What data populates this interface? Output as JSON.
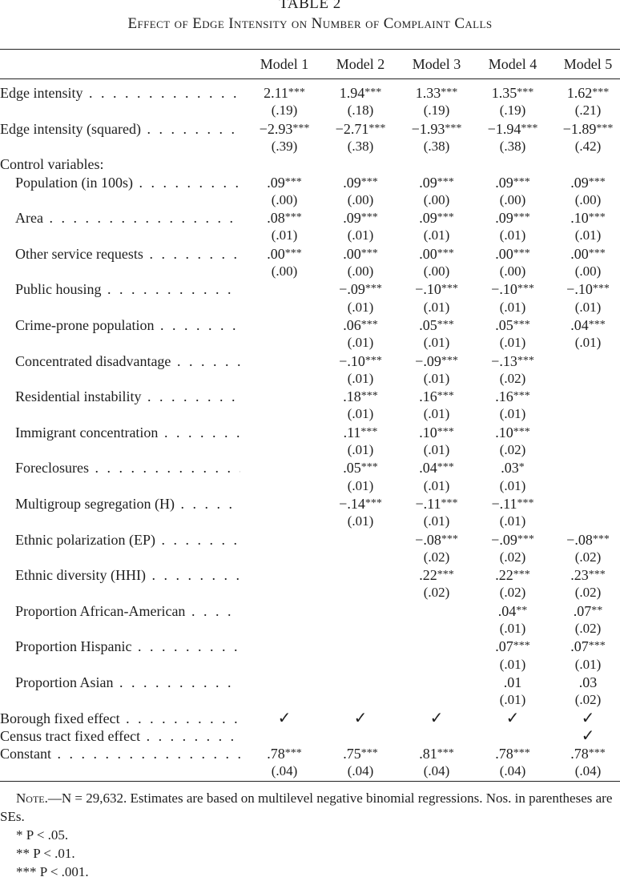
{
  "title": {
    "number": "TABLE 2",
    "caption": "Effect of Edge Intensity on Number of Complaint Calls"
  },
  "columns": [
    "Model 1",
    "Model 2",
    "Model 3",
    "Model 4",
    "Model 5"
  ],
  "rows": [
    {
      "label": "Edge intensity",
      "indent": false,
      "coef": [
        [
          "2.11",
          "***"
        ],
        [
          "1.94",
          "***"
        ],
        [
          "1.33",
          "***"
        ],
        [
          "1.35",
          "***"
        ],
        [
          "1.62",
          "***"
        ]
      ],
      "se": [
        "(.19)",
        "(.18)",
        "(.19)",
        "(.19)",
        "(.21)"
      ]
    },
    {
      "label": "Edge intensity (squared)",
      "indent": false,
      "coef": [
        [
          "−2.93",
          "***"
        ],
        [
          "−2.71",
          "***"
        ],
        [
          "−1.93",
          "***"
        ],
        [
          "−1.94",
          "***"
        ],
        [
          "−1.89",
          "***"
        ]
      ],
      "se": [
        "(.39)",
        "(.38)",
        "(.38)",
        "(.38)",
        "(.42)"
      ]
    },
    {
      "label": "Control variables:",
      "indent": false,
      "header": true
    },
    {
      "label": "Population (in 100s)",
      "indent": true,
      "coef": [
        [
          ".09",
          "***"
        ],
        [
          ".09",
          "***"
        ],
        [
          ".09",
          "***"
        ],
        [
          ".09",
          "***"
        ],
        [
          ".09",
          "***"
        ]
      ],
      "se": [
        "(.00)",
        "(.00)",
        "(.00)",
        "(.00)",
        "(.00)"
      ]
    },
    {
      "label": "Area",
      "indent": true,
      "coef": [
        [
          ".08",
          "***"
        ],
        [
          ".09",
          "***"
        ],
        [
          ".09",
          "***"
        ],
        [
          ".09",
          "***"
        ],
        [
          ".10",
          "***"
        ]
      ],
      "se": [
        "(.01)",
        "(.01)",
        "(.01)",
        "(.01)",
        "(.01)"
      ]
    },
    {
      "label": "Other service requests",
      "indent": true,
      "coef": [
        [
          ".00",
          "***"
        ],
        [
          ".00",
          "***"
        ],
        [
          ".00",
          "***"
        ],
        [
          ".00",
          "***"
        ],
        [
          ".00",
          "***"
        ]
      ],
      "se": [
        "(.00)",
        "(.00)",
        "(.00)",
        "(.00)",
        "(.00)"
      ]
    },
    {
      "label": "Public housing",
      "indent": true,
      "coef": [
        null,
        [
          "−.09",
          "***"
        ],
        [
          "−.10",
          "***"
        ],
        [
          "−.10",
          "***"
        ],
        [
          "−.10",
          "***"
        ]
      ],
      "se": [
        "",
        "(.01)",
        "(.01)",
        "(.01)",
        "(.01)"
      ]
    },
    {
      "label": "Crime-prone population",
      "indent": true,
      "coef": [
        null,
        [
          ".06",
          "***"
        ],
        [
          ".05",
          "***"
        ],
        [
          ".05",
          "***"
        ],
        [
          ".04",
          "***"
        ]
      ],
      "se": [
        "",
        "(.01)",
        "(.01)",
        "(.01)",
        "(.01)"
      ]
    },
    {
      "label": "Concentrated disadvantage",
      "indent": true,
      "coef": [
        null,
        [
          "−.10",
          "***"
        ],
        [
          "−.09",
          "***"
        ],
        [
          "−.13",
          "***"
        ],
        null
      ],
      "se": [
        "",
        "(.01)",
        "(.01)",
        "(.02)",
        ""
      ]
    },
    {
      "label": "Residential instability",
      "indent": true,
      "coef": [
        null,
        [
          ".18",
          "***"
        ],
        [
          ".16",
          "***"
        ],
        [
          ".16",
          "***"
        ],
        null
      ],
      "se": [
        "",
        "(.01)",
        "(.01)",
        "(.01)",
        ""
      ]
    },
    {
      "label": "Immigrant concentration",
      "indent": true,
      "coef": [
        null,
        [
          ".11",
          "***"
        ],
        [
          ".10",
          "***"
        ],
        [
          ".10",
          "***"
        ],
        null
      ],
      "se": [
        "",
        "(.01)",
        "(.01)",
        "(.02)",
        ""
      ]
    },
    {
      "label": "Foreclosures",
      "indent": true,
      "coef": [
        null,
        [
          ".05",
          "***"
        ],
        [
          ".04",
          "***"
        ],
        [
          ".03",
          "*"
        ],
        null
      ],
      "se": [
        "",
        "(.01)",
        "(.01)",
        "(.01)",
        ""
      ]
    },
    {
      "label": "Multigroup segregation (H)",
      "indent": true,
      "coef": [
        null,
        [
          "−.14",
          "***"
        ],
        [
          "−.11",
          "***"
        ],
        [
          "−.11",
          "***"
        ],
        null
      ],
      "se": [
        "",
        "(.01)",
        "(.01)",
        "(.01)",
        ""
      ]
    },
    {
      "label": "Ethnic polarization (EP)",
      "indent": true,
      "coef": [
        null,
        null,
        [
          "−.08",
          "***"
        ],
        [
          "−.09",
          "***"
        ],
        [
          "−.08",
          "***"
        ]
      ],
      "se": [
        "",
        "",
        "(.02)",
        "(.02)",
        "(.02)"
      ]
    },
    {
      "label": "Ethnic diversity (HHI)",
      "indent": true,
      "coef": [
        null,
        null,
        [
          ".22",
          "***"
        ],
        [
          ".22",
          "***"
        ],
        [
          ".23",
          "***"
        ]
      ],
      "se": [
        "",
        "",
        "(.02)",
        "(.02)",
        "(.02)"
      ]
    },
    {
      "label": "Proportion African-American",
      "indent": true,
      "coef": [
        null,
        null,
        null,
        [
          ".04",
          "**"
        ],
        [
          ".07",
          "**"
        ]
      ],
      "se": [
        "",
        "",
        "",
        "(.01)",
        "(.02)"
      ]
    },
    {
      "label": "Proportion Hispanic",
      "indent": true,
      "coef": [
        null,
        null,
        null,
        [
          ".07",
          "***"
        ],
        [
          ".07",
          "***"
        ]
      ],
      "se": [
        "",
        "",
        "",
        "(.01)",
        "(.01)"
      ]
    },
    {
      "label": "Proportion Asian",
      "indent": true,
      "coef": [
        null,
        null,
        null,
        [
          ".01",
          ""
        ],
        [
          ".03",
          ""
        ]
      ],
      "se": [
        "",
        "",
        "",
        "(.01)",
        "(.02)"
      ]
    }
  ],
  "fixed_effects": [
    {
      "label": "Borough fixed effect",
      "checks": [
        true,
        true,
        true,
        true,
        true
      ]
    },
    {
      "label": "Census tract fixed effect",
      "checks": [
        false,
        false,
        false,
        false,
        true
      ]
    }
  ],
  "check_mark": "✓",
  "constant": {
    "label": "Constant",
    "coef": [
      [
        ".78",
        "***"
      ],
      [
        ".75",
        "***"
      ],
      [
        ".81",
        "***"
      ],
      [
        ".78",
        "***"
      ],
      [
        ".78",
        "***"
      ]
    ],
    "se": [
      "(.04)",
      "(.04)",
      "(.04)",
      "(.04)",
      "(.04)"
    ]
  },
  "note": {
    "lead": "Note.",
    "text": "—N = 29,632. Estimates are based on multilevel negative binomial regressions. Nos. in parentheses are SEs.",
    "sig": [
      {
        "stars": "*",
        "text": "P < .05."
      },
      {
        "stars": "**",
        "text": "P < .01."
      },
      {
        "stars": "***",
        "text": "P < .001."
      }
    ]
  }
}
